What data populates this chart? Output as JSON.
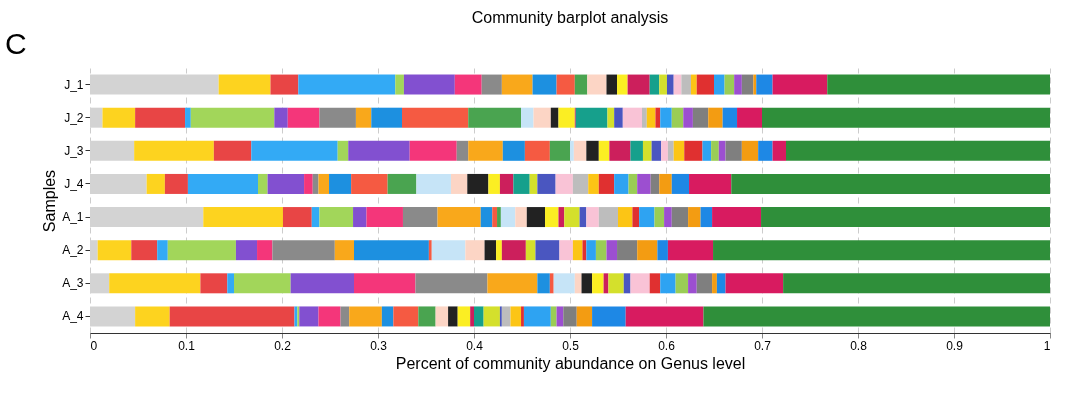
{
  "chart_data": {
    "type": "bar",
    "orientation": "horizontal",
    "stacked": true,
    "title": "Community barplot analysis",
    "xlabel": "Percent of community abundance on Genus level",
    "ylabel": "Samples",
    "annotations": [
      "C"
    ],
    "categories": [
      "J_1",
      "J_2",
      "J_3",
      "J_4",
      "A_1",
      "A_2",
      "A_3",
      "A_4"
    ],
    "xlim": [
      0,
      1
    ],
    "xticks": [
      0,
      0.1,
      0.2,
      0.3,
      0.4,
      0.5,
      0.6,
      0.7,
      0.8,
      0.9,
      1
    ],
    "grid": "x",
    "legend": false,
    "series": [
      {
        "color": "#d3d3d3",
        "values": [
          0.134,
          0.013,
          0.046,
          0.059,
          0.118,
          0.008,
          0.02,
          0.047
        ]
      },
      {
        "color": "#fdd31f",
        "values": [
          0.054,
          0.034,
          0.083,
          0.019,
          0.083,
          0.035,
          0.095,
          0.036
        ]
      },
      {
        "color": "#e84545",
        "values": [
          0.029,
          0.052,
          0.039,
          0.024,
          0.03,
          0.027,
          0.028,
          0.13
        ]
      },
      {
        "color": "#33aaf5",
        "values": [
          0.101,
          0.006,
          0.09,
          0.073,
          0.008,
          0.011,
          0.007,
          0.003
        ]
      },
      {
        "color": "#a2d65a",
        "values": [
          0.009,
          0.087,
          0.011,
          0.01,
          0.035,
          0.071,
          0.059,
          0.002
        ]
      },
      {
        "color": "#8250d0",
        "values": [
          0.053,
          0.014,
          0.064,
          0.038,
          0.014,
          0.022,
          0.066,
          0.02
        ]
      },
      {
        "color": "#f4367a",
        "values": [
          0.028,
          0.033,
          0.049,
          0.009,
          0.038,
          0.016,
          0.064,
          0.023
        ]
      },
      {
        "color": "#8a8a8a",
        "values": [
          0.021,
          0.038,
          0.012,
          0.006,
          0.036,
          0.065,
          0.075,
          0.009
        ]
      },
      {
        "color": "#f9a81b",
        "values": [
          0.032,
          0.016,
          0.036,
          0.011,
          0.045,
          0.02,
          0.052,
          0.034
        ]
      },
      {
        "color": "#1d90e0",
        "values": [
          0.025,
          0.032,
          0.023,
          0.023,
          0.012,
          0.078,
          0.013,
          0.012
        ]
      },
      {
        "color": "#f55a42",
        "values": [
          0.019,
          0.069,
          0.026,
          0.038,
          0.005,
          0.003,
          0.004,
          0.026
        ]
      },
      {
        "color": "#4aa450",
        "values": [
          0.013,
          0.055,
          0.021,
          0.03,
          0.004,
          0,
          0,
          0.018
        ]
      },
      {
        "color": "#c6e4f7",
        "values": [
          0,
          0.013,
          0.004,
          0.036,
          0.015,
          0.035,
          0.022,
          0
        ]
      },
      {
        "color": "#fcd5c5",
        "values": [
          0.02,
          0.018,
          0.013,
          0.017,
          0.012,
          0.02,
          0.007,
          0.013
        ]
      },
      {
        "color": "#222222",
        "values": [
          0.011,
          0.008,
          0.013,
          0.022,
          0.019,
          0.012,
          0.011,
          0.01
        ]
      },
      {
        "color": "#fbee23",
        "values": [
          0.011,
          0.017,
          0.011,
          0.012,
          0.014,
          0.006,
          0.012,
          0.013
        ]
      },
      {
        "color": "#cc1f5c",
        "values": [
          0.023,
          0.001,
          0.022,
          0.014,
          0.006,
          0.025,
          0.005,
          0.004
        ]
      },
      {
        "color": "#16a08c",
        "values": [
          0.01,
          0.033,
          0.013,
          0.017,
          0,
          0,
          0,
          0.01
        ]
      },
      {
        "color": "#d4e02c",
        "values": [
          0.008,
          0.007,
          0.009,
          0.008,
          0.016,
          0.01,
          0.016,
          0.017
        ]
      },
      {
        "color": "#4a56c0",
        "values": [
          0.007,
          0.009,
          0.01,
          0.019,
          0.007,
          0.025,
          0.007,
          0.002
        ]
      },
      {
        "color": "#f9c3d6",
        "values": [
          0.008,
          0.02,
          0.007,
          0.018,
          0.013,
          0.014,
          0.02,
          0
        ]
      },
      {
        "color": "#bdbdbd",
        "values": [
          0.01,
          0.005,
          0.006,
          0.016,
          0.02,
          0,
          0,
          0.009
        ]
      },
      {
        "color": "#fcc515",
        "values": [
          0.006,
          0.009,
          0.011,
          0.011,
          0.015,
          0.01,
          0,
          0.011
        ]
      },
      {
        "color": "#e03030",
        "values": [
          0.018,
          0.005,
          0.019,
          0.016,
          0.007,
          0.004,
          0.011,
          0.003
        ]
      },
      {
        "color": "#2ea3f2",
        "values": [
          0.011,
          0.012,
          0.009,
          0.015,
          0.016,
          0.01,
          0.016,
          0.028
        ]
      },
      {
        "color": "#9acd55",
        "values": [
          0.01,
          0.012,
          0.008,
          0.009,
          0.01,
          0.011,
          0.013,
          0.006
        ]
      },
      {
        "color": "#9c4fd0",
        "values": [
          0.008,
          0.01,
          0.007,
          0.014,
          0.008,
          0.011,
          0.009,
          0.007
        ]
      },
      {
        "color": "#7f7f7f",
        "values": [
          0.012,
          0.016,
          0.017,
          0.009,
          0.017,
          0.021,
          0.016,
          0.014
        ]
      },
      {
        "color": "#f39c12",
        "values": [
          0.003,
          0.015,
          0.017,
          0.013,
          0.013,
          0.021,
          0.005,
          0.016
        ]
      },
      {
        "color": "#1e88e5",
        "values": [
          0.017,
          0.015,
          0.015,
          0.018,
          0.012,
          0.011,
          0.009,
          0.035
        ]
      },
      {
        "color": "#d81b60",
        "values": [
          0.057,
          0.026,
          0.014,
          0.044,
          0.051,
          0.047,
          0.06,
          0.081
        ]
      },
      {
        "color": "#2f8f3a",
        "values": [
          0.232,
          0.3,
          0.275,
          0.332,
          0.301,
          0.351,
          0.278,
          0.361
        ]
      }
    ]
  }
}
